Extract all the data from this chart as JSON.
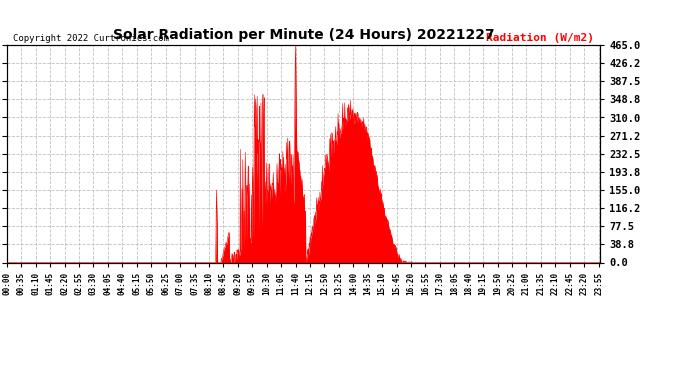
{
  "title": "Solar Radiation per Minute (24 Hours) 20221227",
  "ylabel": "Radiation (W/m2)",
  "copyright": "Copyright 2022 Curtronics.com",
  "yticks": [
    0.0,
    38.8,
    77.5,
    116.2,
    155.0,
    193.8,
    232.5,
    271.2,
    310.0,
    348.8,
    387.5,
    426.2,
    465.0
  ],
  "ylim": [
    0.0,
    465.0
  ],
  "fill_color": "#ff0000",
  "line_color": "#ff0000",
  "bg_color": "#ffffff",
  "plot_bg_color": "#ffffff",
  "grid_color": "#c0c0c0",
  "title_color": "#000000",
  "ylabel_color": "#ff0000",
  "copyright_color": "#000000",
  "zero_line_color": "#ff0000"
}
